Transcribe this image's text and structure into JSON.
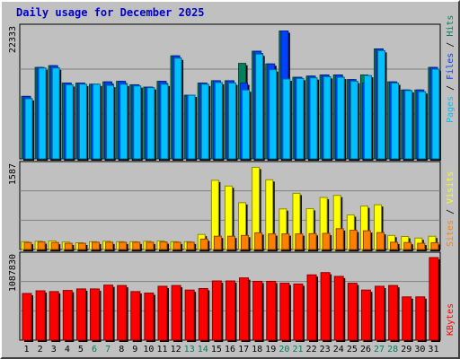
{
  "title": "Daily usage for December 2025",
  "colors": {
    "background": "#c0c0c0",
    "hits": "#00805c",
    "files": "#0040ff",
    "pages": "#00c0ff",
    "visits": "#ffff00",
    "sites": "#ff8000",
    "kbytes": "#ff0000",
    "title": "#0000cc",
    "weekend_label": "#00805c"
  },
  "chart_data": [
    {
      "type": "bar",
      "panel": "hits-files-pages",
      "y_max_label": "22333",
      "ylim": [
        0,
        22333
      ],
      "right_legend": [
        "Pages",
        "Files",
        "Hits"
      ],
      "categories": [
        "1",
        "2",
        "3",
        "4",
        "5",
        "6",
        "7",
        "8",
        "9",
        "10",
        "11",
        "12",
        "13",
        "14",
        "15",
        "16",
        "17",
        "18",
        "19",
        "20",
        "21",
        "22",
        "23",
        "24",
        "25",
        "26",
        "27",
        "28",
        "29",
        "30",
        "31"
      ],
      "weekend_days": [
        "6",
        "7",
        "13",
        "14",
        "20",
        "21",
        "27",
        "28"
      ],
      "series": [
        {
          "name": "Hits",
          "values": [
            10800,
            15800,
            16100,
            13100,
            13100,
            12900,
            13300,
            13400,
            12800,
            12400,
            13400,
            17800,
            11000,
            13100,
            13500,
            13500,
            16500,
            18600,
            16400,
            22100,
            14100,
            14300,
            14500,
            14500,
            13700,
            14500,
            19000,
            13300,
            11900,
            11900,
            15800
          ]
        },
        {
          "name": "Files",
          "values": [
            10800,
            15800,
            16100,
            13100,
            13100,
            12900,
            13300,
            13400,
            12800,
            12400,
            13400,
            17800,
            11000,
            13100,
            13500,
            13500,
            13100,
            18600,
            16400,
            22100,
            14100,
            14300,
            14500,
            14500,
            13700,
            13100,
            19000,
            13300,
            11900,
            11900,
            15800
          ]
        },
        {
          "name": "Pages",
          "values": [
            10400,
            15700,
            15700,
            12800,
            12900,
            12900,
            12700,
            12900,
            12600,
            12300,
            12900,
            17400,
            11000,
            12900,
            13200,
            13100,
            11900,
            18100,
            15400,
            13800,
            13900,
            14000,
            14200,
            14100,
            13400,
            14400,
            18700,
            13100,
            11800,
            11600,
            15500
          ]
        }
      ]
    },
    {
      "type": "bar",
      "panel": "visits-sites",
      "y_max_label": "1587",
      "ylim": [
        0,
        1587
      ],
      "right_legend": [
        "Sites",
        "Visits"
      ],
      "categories": [
        "1",
        "2",
        "3",
        "4",
        "5",
        "6",
        "7",
        "8",
        "9",
        "10",
        "11",
        "12",
        "13",
        "14",
        "15",
        "16",
        "17",
        "18",
        "19",
        "20",
        "21",
        "22",
        "23",
        "24",
        "25",
        "26",
        "27",
        "28",
        "29",
        "30",
        "31"
      ],
      "series": [
        {
          "name": "Visits",
          "values": [
            150,
            160,
            165,
            145,
            130,
            150,
            160,
            150,
            150,
            160,
            165,
            150,
            150,
            290,
            1330,
            1220,
            900,
            1580,
            1340,
            780,
            1080,
            785,
            1000,
            1040,
            665,
            835,
            860,
            270,
            250,
            220,
            255
          ]
        },
        {
          "name": "Sites",
          "values": [
            135,
            145,
            135,
            120,
            120,
            140,
            140,
            140,
            140,
            140,
            145,
            140,
            140,
            200,
            255,
            255,
            270,
            320,
            300,
            300,
            300,
            305,
            310,
            400,
            370,
            360,
            325,
            140,
            135,
            120,
            130
          ]
        }
      ]
    },
    {
      "type": "bar",
      "panel": "kbytes",
      "y_max_label": "1087830",
      "ylim": [
        0,
        1087830
      ],
      "right_legend": [
        "KBytes"
      ],
      "categories": [
        "1",
        "2",
        "3",
        "4",
        "5",
        "6",
        "7",
        "8",
        "9",
        "10",
        "11",
        "12",
        "13",
        "14",
        "15",
        "16",
        "17",
        "18",
        "19",
        "20",
        "21",
        "22",
        "23",
        "24",
        "25",
        "26",
        "27",
        "28",
        "29",
        "30",
        "31"
      ],
      "series": [
        {
          "name": "KBytes",
          "values": [
            615000,
            650000,
            640000,
            655000,
            675000,
            675000,
            725000,
            720000,
            640000,
            620000,
            710000,
            720000,
            660000,
            680000,
            780000,
            780000,
            820000,
            775000,
            775000,
            750000,
            740000,
            860000,
            890000,
            840000,
            750000,
            660000,
            710000,
            720000,
            570000,
            570000,
            1087830
          ]
        }
      ]
    }
  ]
}
